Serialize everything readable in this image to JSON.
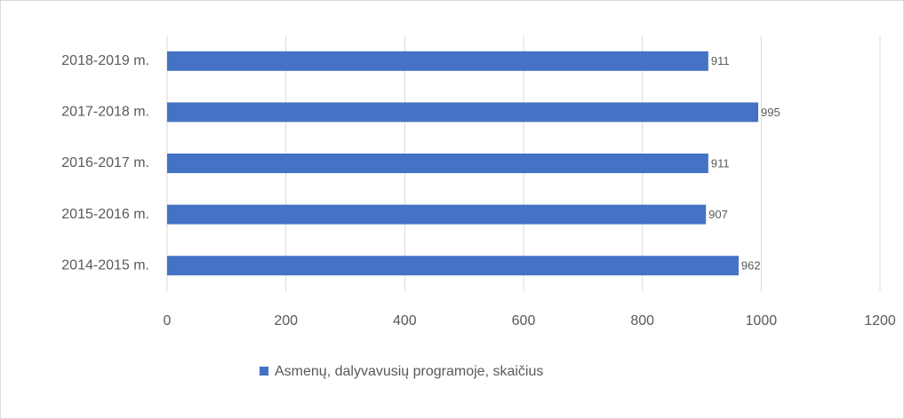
{
  "chart_data": {
    "type": "barh",
    "categories": [
      "2018-2019 m.",
      "2017-2018 m.",
      "2016-2017 m.",
      "2015-2016 m.",
      "2014-2015 m."
    ],
    "series": [
      {
        "name": "Asmenų, dalyvavusių programoje, skaičius",
        "color": "#4472c4",
        "values": [
          911,
          995,
          911,
          907,
          962
        ]
      }
    ],
    "xlim": [
      0,
      1200
    ],
    "xticks": [
      0,
      200,
      400,
      600,
      800,
      1000,
      1200
    ],
    "grid": true,
    "legend": "bottom"
  }
}
